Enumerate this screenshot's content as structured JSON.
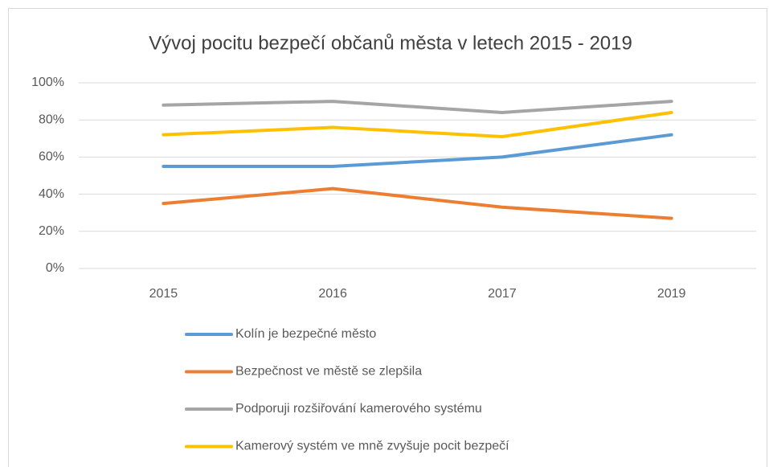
{
  "chart_data": {
    "type": "line",
    "title": "Vývoj pocitu bezpečí občanů města v letech 2015 - 2019",
    "categories": [
      "2015",
      "2016",
      "2017",
      "2019"
    ],
    "series": [
      {
        "name": "Kolín je bezpečné město",
        "color": "#5b9bd5",
        "values": [
          55,
          55,
          60,
          72
        ]
      },
      {
        "name": "Bezpečnost ve městě se zlepšila",
        "color": "#ed7d31",
        "values": [
          35,
          43,
          33,
          27
        ]
      },
      {
        "name": "Podporuji rozšiřování kamerového systému",
        "color": "#a5a5a5",
        "values": [
          88,
          90,
          84,
          90
        ]
      },
      {
        "name": "Kamerový systém ve mně zvyšuje pocit bezpečí",
        "color": "#ffc000",
        "values": [
          72,
          76,
          71,
          84
        ]
      }
    ],
    "ylim": [
      0,
      100
    ],
    "yticks": [
      {
        "value": 0,
        "label": "0%"
      },
      {
        "value": 20,
        "label": "20%"
      },
      {
        "value": 40,
        "label": "40%"
      },
      {
        "value": 60,
        "label": "60%"
      },
      {
        "value": 80,
        "label": "80%"
      },
      {
        "value": 100,
        "label": "100%"
      }
    ],
    "grid": true,
    "legend": "bottom"
  }
}
